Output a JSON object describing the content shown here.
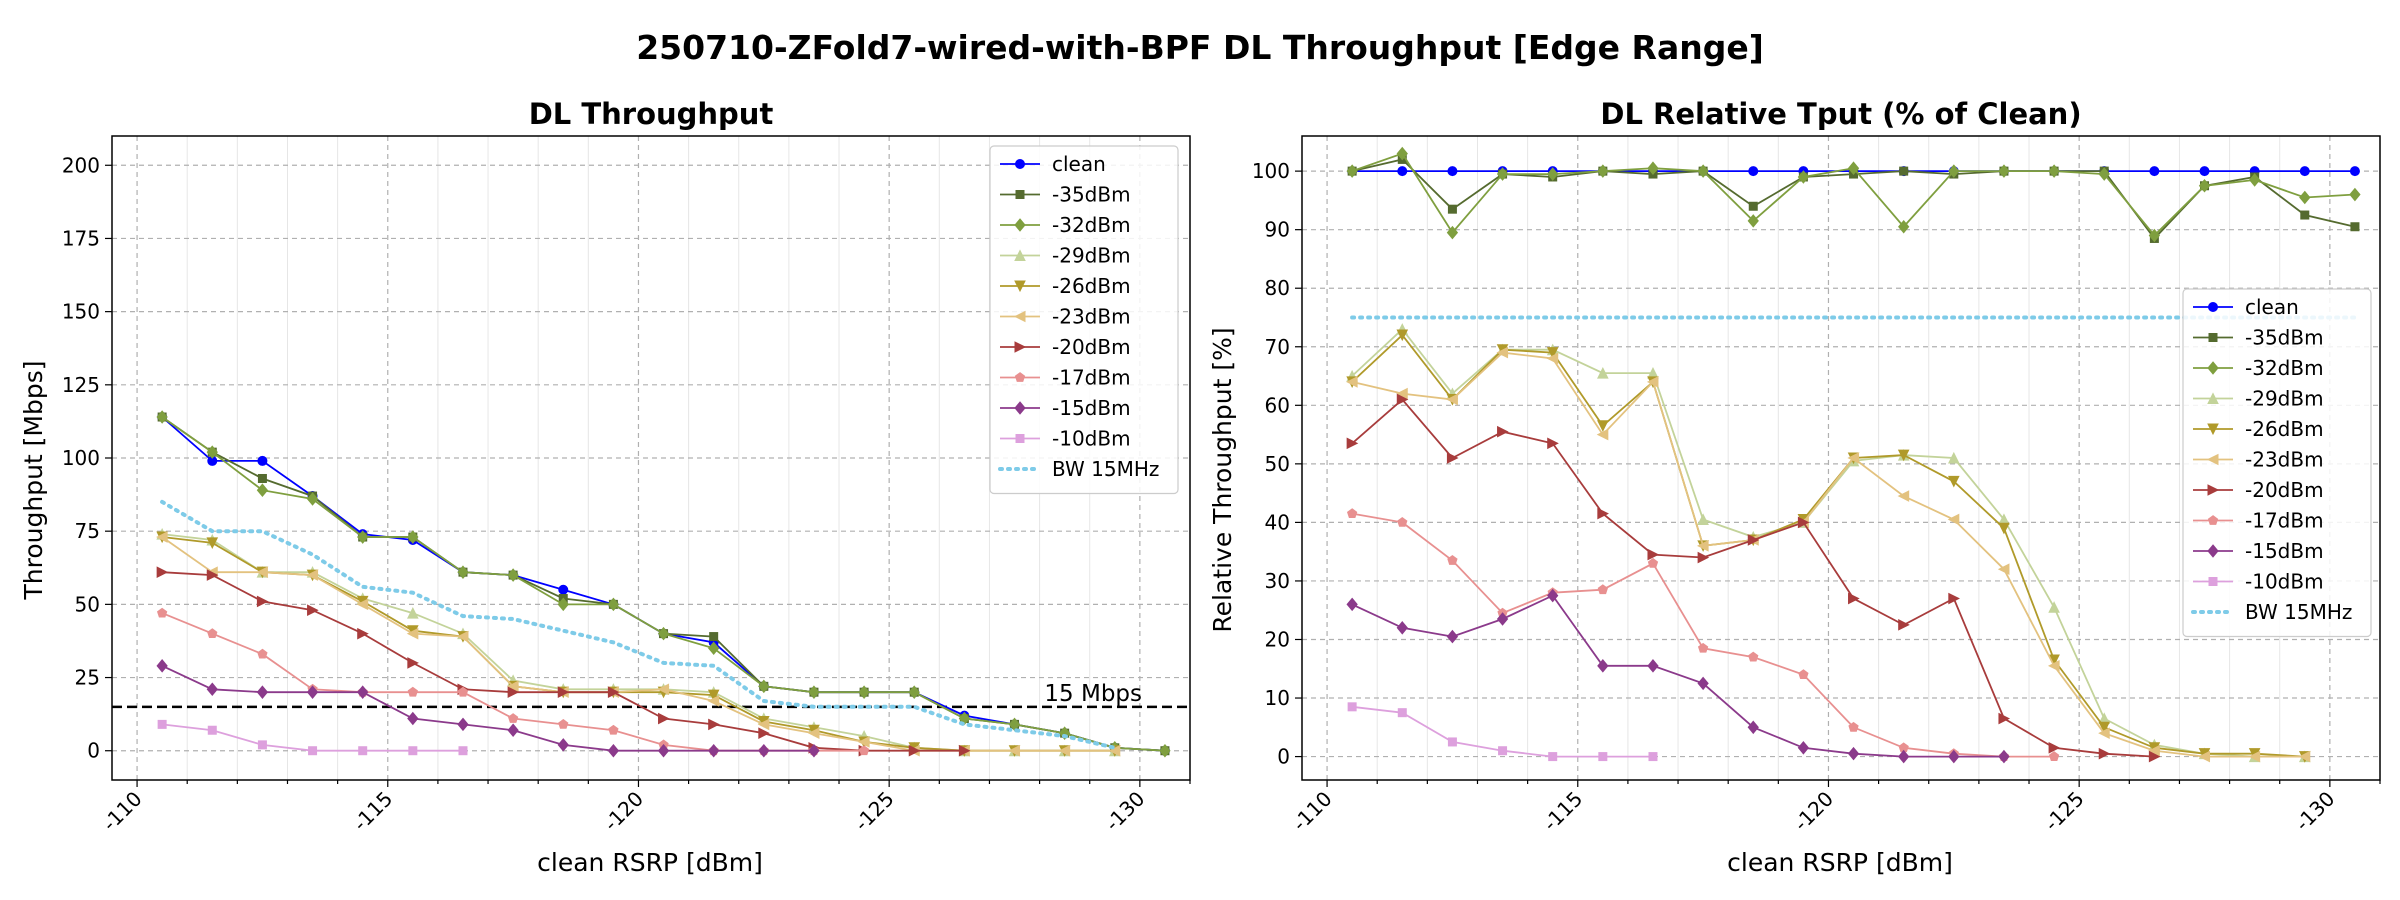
{
  "figure": {
    "suptitle": "250710-ZFold7-wired-with-BPF DL Throughput [Edge Range]"
  },
  "chart_data": [
    {
      "type": "line",
      "title": "DL Throughput",
      "xlabel": "clean RSRP [dBm]",
      "ylabel": "Throughput [Mbps]",
      "x_reversed": true,
      "xlim": [
        -109.5,
        -131
      ],
      "ylim": [
        -10,
        210
      ],
      "xticks": [
        -110,
        -115,
        -120,
        -125,
        -130
      ],
      "yticks": [
        0,
        25,
        50,
        75,
        100,
        125,
        150,
        175,
        200
      ],
      "grid": true,
      "legend_position": "top-right",
      "hline": {
        "y": 15,
        "label": "15 Mbps",
        "color": "#000000",
        "style": "dashed"
      },
      "series": [
        {
          "name": "clean",
          "color": "#0000ff",
          "marker": "circle",
          "x": [
            -110.5,
            -111.5,
            -112.5,
            -113.5,
            -114.5,
            -115.5,
            -116.5,
            -117.5,
            -118.5,
            -119.5,
            -120.5,
            -121.5,
            -122.5,
            -123.5,
            -124.5,
            -125.5,
            -126.5,
            -127.5,
            -128.5,
            -129.5,
            -130.5
          ],
          "y": [
            114,
            99,
            99,
            87,
            74,
            72,
            61,
            60,
            55,
            50,
            40,
            37,
            22,
            20,
            20,
            20,
            12,
            9,
            6,
            1,
            0
          ]
        },
        {
          "name": "-35dBm",
          "color": "#556b2f",
          "marker": "square",
          "x": [
            -110.5,
            -111.5,
            -112.5,
            -113.5,
            -114.5,
            -115.5,
            -116.5,
            -117.5,
            -118.5,
            -119.5,
            -120.5,
            -121.5,
            -122.5,
            -123.5,
            -124.5,
            -125.5,
            -126.5,
            -127.5,
            -128.5,
            -129.5,
            -130.5
          ],
          "y": [
            114,
            102,
            93,
            87,
            73,
            73,
            61,
            60,
            52,
            50,
            40,
            39,
            22,
            20,
            20,
            20,
            11,
            9,
            6,
            1,
            0
          ]
        },
        {
          "name": "-32dBm",
          "color": "#7f9f3f",
          "marker": "diamond",
          "x": [
            -110.5,
            -111.5,
            -112.5,
            -113.5,
            -114.5,
            -115.5,
            -116.5,
            -117.5,
            -118.5,
            -119.5,
            -120.5,
            -121.5,
            -122.5,
            -123.5,
            -124.5,
            -125.5,
            -126.5,
            -127.5,
            -128.5,
            -129.5,
            -130.5
          ],
          "y": [
            114,
            102,
            89,
            86,
            73,
            73,
            61,
            60,
            50,
            50,
            40,
            35,
            22,
            20,
            20,
            20,
            11,
            9,
            6,
            1,
            0
          ]
        },
        {
          "name": "-29dBm",
          "color": "#c3d39a",
          "marker": "triangle-up",
          "x": [
            -110.5,
            -111.5,
            -112.5,
            -113.5,
            -114.5,
            -115.5,
            -116.5,
            -117.5,
            -118.5,
            -119.5,
            -120.5,
            -121.5,
            -122.5,
            -123.5,
            -124.5,
            -125.5,
            -126.5,
            -127.5,
            -128.5,
            -129.5
          ],
          "y": [
            74,
            72,
            61,
            61,
            52,
            47,
            40,
            24,
            21,
            21,
            21,
            20,
            11,
            8,
            5,
            1,
            0,
            0,
            0,
            0
          ]
        },
        {
          "name": "-26dBm",
          "color": "#b09a2a",
          "marker": "triangle-down",
          "x": [
            -110.5,
            -111.5,
            -112.5,
            -113.5,
            -114.5,
            -115.5,
            -116.5,
            -117.5,
            -118.5,
            -119.5,
            -120.5,
            -121.5,
            -122.5,
            -123.5,
            -124.5,
            -125.5,
            -126.5,
            -127.5,
            -128.5,
            -129.5
          ],
          "y": [
            73,
            71,
            61,
            60,
            51,
            41,
            39,
            22,
            20,
            20,
            20,
            19,
            10,
            7,
            3,
            1,
            0,
            0,
            0,
            0
          ]
        },
        {
          "name": "-23dBm",
          "color": "#e3c27f",
          "marker": "triangle-left",
          "x": [
            -110.5,
            -111.5,
            -112.5,
            -113.5,
            -114.5,
            -115.5,
            -116.5,
            -117.5,
            -118.5,
            -119.5,
            -120.5,
            -121.5,
            -122.5,
            -123.5,
            -124.5,
            -125.5,
            -126.5,
            -127.5,
            -128.5,
            -129.5
          ],
          "y": [
            73,
            61,
            61,
            60,
            50,
            40,
            39,
            22,
            20,
            20,
            21,
            17,
            9,
            6,
            3,
            0,
            0,
            0,
            0,
            0
          ]
        },
        {
          "name": "-20dBm",
          "color": "#a83c3c",
          "marker": "triangle-right",
          "x": [
            -110.5,
            -111.5,
            -112.5,
            -113.5,
            -114.5,
            -115.5,
            -116.5,
            -117.5,
            -118.5,
            -119.5,
            -120.5,
            -121.5,
            -122.5,
            -123.5,
            -124.5,
            -125.5,
            -126.5
          ],
          "y": [
            61,
            60,
            51,
            48,
            40,
            30,
            21,
            20,
            20,
            20,
            11,
            9,
            6,
            1,
            0,
            0,
            0
          ]
        },
        {
          "name": "-17dBm",
          "color": "#e89090",
          "marker": "pentagon",
          "x": [
            -110.5,
            -111.5,
            -112.5,
            -113.5,
            -114.5,
            -115.5,
            -116.5,
            -117.5,
            -118.5,
            -119.5,
            -120.5,
            -121.5,
            -122.5,
            -123.5,
            -124.5
          ],
          "y": [
            47,
            40,
            33,
            21,
            20,
            20,
            20,
            11,
            9,
            7,
            2,
            0,
            0,
            0,
            0
          ]
        },
        {
          "name": "-15dBm",
          "color": "#8b3a8b",
          "marker": "diamond",
          "x": [
            -110.5,
            -111.5,
            -112.5,
            -113.5,
            -114.5,
            -115.5,
            -116.5,
            -117.5,
            -118.5,
            -119.5,
            -120.5,
            -121.5,
            -122.5,
            -123.5
          ],
          "y": [
            29,
            21,
            20,
            20,
            20,
            11,
            9,
            7,
            2,
            0,
            0,
            0,
            0,
            0
          ]
        },
        {
          "name": "-10dBm",
          "color": "#dda0dd",
          "marker": "square",
          "x": [
            -110.5,
            -111.5,
            -112.5,
            -113.5,
            -114.5,
            -115.5,
            -116.5
          ],
          "y": [
            9,
            7,
            2,
            0,
            0,
            0,
            0
          ]
        },
        {
          "name": "BW 15MHz",
          "color": "#7ecbe8",
          "style": "dotted",
          "marker": "none",
          "x": [
            -110.5,
            -111.5,
            -112.5,
            -113.5,
            -114.5,
            -115.5,
            -116.5,
            -117.5,
            -118.5,
            -119.5,
            -120.5,
            -121.5,
            -122.5,
            -123.5,
            -124.5,
            -125.5,
            -126.5,
            -127.5,
            -128.5,
            -129.5
          ],
          "y": [
            85,
            75,
            75,
            67,
            56,
            54,
            46,
            45,
            41,
            37,
            30,
            29,
            17,
            15,
            15,
            15,
            9,
            7,
            5,
            1
          ]
        }
      ]
    },
    {
      "type": "line",
      "title": "DL Relative Tput (% of Clean)",
      "xlabel": "clean RSRP [dBm]",
      "ylabel": "Relative Throughput [%]",
      "x_reversed": true,
      "xlim": [
        -109.5,
        -131
      ],
      "ylim": [
        -4,
        106
      ],
      "xticks": [
        -110,
        -115,
        -120,
        -125,
        -130
      ],
      "yticks": [
        0,
        10,
        20,
        30,
        40,
        50,
        60,
        70,
        80,
        90,
        100
      ],
      "grid": true,
      "legend_position": "center-right",
      "series": [
        {
          "name": "clean",
          "color": "#0000ff",
          "marker": "circle",
          "x": [
            -110.5,
            -111.5,
            -112.5,
            -113.5,
            -114.5,
            -115.5,
            -116.5,
            -117.5,
            -118.5,
            -119.5,
            -120.5,
            -121.5,
            -122.5,
            -123.5,
            -124.5,
            -125.5,
            -126.5,
            -127.5,
            -128.5,
            -129.5,
            -130.5
          ],
          "y": [
            100,
            100,
            100,
            100,
            100,
            100,
            100,
            100,
            100,
            100,
            100,
            100,
            100,
            100,
            100,
            100,
            100,
            100,
            100,
            100,
            100
          ]
        },
        {
          "name": "-35dBm",
          "color": "#556b2f",
          "marker": "square",
          "x": [
            -110.5,
            -111.5,
            -112.5,
            -113.5,
            -114.5,
            -115.5,
            -116.5,
            -117.5,
            -118.5,
            -119.5,
            -120.5,
            -121.5,
            -122.5,
            -123.5,
            -124.5,
            -125.5,
            -126.5,
            -127.5,
            -128.5,
            -129.5,
            -130.5
          ],
          "y": [
            100,
            102,
            93.5,
            99.5,
            99,
            100,
            99.5,
            100,
            94,
            99,
            99.5,
            100,
            99.5,
            100,
            100,
            100,
            88.5,
            97.5,
            99,
            92.5,
            90.5
          ]
        },
        {
          "name": "-32dBm",
          "color": "#7f9f3f",
          "marker": "diamond",
          "x": [
            -110.5,
            -111.5,
            -112.5,
            -113.5,
            -114.5,
            -115.5,
            -116.5,
            -117.5,
            -118.5,
            -119.5,
            -120.5,
            -121.5,
            -122.5,
            -123.5,
            -124.5,
            -125.5,
            -126.5,
            -127.5,
            -128.5,
            -129.5,
            -130.5
          ],
          "y": [
            100,
            103,
            89.5,
            99.5,
            99.5,
            100,
            100.5,
            100,
            91.5,
            99,
            100.5,
            90.5,
            100,
            100,
            100,
            99.5,
            89,
            97.5,
            98.5,
            95.5,
            96
          ]
        },
        {
          "name": "-29dBm",
          "color": "#c3d39a",
          "marker": "triangle-up",
          "x": [
            -110.5,
            -111.5,
            -112.5,
            -113.5,
            -114.5,
            -115.5,
            -116.5,
            -117.5,
            -118.5,
            -119.5,
            -120.5,
            -121.5,
            -122.5,
            -123.5,
            -124.5,
            -125.5,
            -126.5,
            -127.5,
            -128.5,
            -129.5
          ],
          "y": [
            65,
            73,
            62,
            69.5,
            69.5,
            65.5,
            65.5,
            40.5,
            37.5,
            40,
            50.5,
            51.5,
            51,
            40.5,
            25.5,
            6.5,
            2,
            0.5,
            0,
            0
          ]
        },
        {
          "name": "-26dBm",
          "color": "#b09a2a",
          "marker": "triangle-down",
          "x": [
            -110.5,
            -111.5,
            -112.5,
            -113.5,
            -114.5,
            -115.5,
            -116.5,
            -117.5,
            -118.5,
            -119.5,
            -120.5,
            -121.5,
            -122.5,
            -123.5,
            -124.5,
            -125.5,
            -126.5,
            -127.5,
            -128.5,
            -129.5
          ],
          "y": [
            64,
            72,
            61,
            69.5,
            69,
            56.5,
            64,
            36,
            37,
            40.5,
            51,
            51.5,
            47,
            39,
            16.5,
            5,
            1.5,
            0.5,
            0.5,
            0
          ]
        },
        {
          "name": "-23dBm",
          "color": "#e3c27f",
          "marker": "triangle-left",
          "x": [
            -110.5,
            -111.5,
            -112.5,
            -113.5,
            -114.5,
            -115.5,
            -116.5,
            -117.5,
            -118.5,
            -119.5,
            -120.5,
            -121.5,
            -122.5,
            -123.5,
            -124.5,
            -125.5,
            -126.5,
            -127.5,
            -128.5,
            -129.5
          ],
          "y": [
            64,
            62,
            61,
            69,
            68,
            55,
            64,
            36,
            37,
            40,
            51,
            44.5,
            40.5,
            32,
            15.5,
            4,
            1,
            0,
            0,
            0
          ]
        },
        {
          "name": "-20dBm",
          "color": "#a83c3c",
          "marker": "triangle-right",
          "x": [
            -110.5,
            -111.5,
            -112.5,
            -113.5,
            -114.5,
            -115.5,
            -116.5,
            -117.5,
            -118.5,
            -119.5,
            -120.5,
            -121.5,
            -122.5,
            -123.5,
            -124.5,
            -125.5,
            -126.5
          ],
          "y": [
            53.5,
            61,
            51,
            55.5,
            53.5,
            41.5,
            34.5,
            34,
            37,
            40,
            27,
            22.5,
            27,
            6.5,
            1.5,
            0.5,
            0
          ]
        },
        {
          "name": "-17dBm",
          "color": "#e89090",
          "marker": "pentagon",
          "x": [
            -110.5,
            -111.5,
            -112.5,
            -113.5,
            -114.5,
            -115.5,
            -116.5,
            -117.5,
            -118.5,
            -119.5,
            -120.5,
            -121.5,
            -122.5,
            -123.5,
            -124.5
          ],
          "y": [
            41.5,
            40,
            33.5,
            24.5,
            28,
            28.5,
            33,
            18.5,
            17,
            14,
            5,
            1.5,
            0.5,
            0,
            0
          ]
        },
        {
          "name": "-15dBm",
          "color": "#8b3a8b",
          "marker": "diamond",
          "x": [
            -110.5,
            -111.5,
            -112.5,
            -113.5,
            -114.5,
            -115.5,
            -116.5,
            -117.5,
            -118.5,
            -119.5,
            -120.5,
            -121.5,
            -122.5,
            -123.5
          ],
          "y": [
            26,
            22,
            20.5,
            23.5,
            27.5,
            15.5,
            15.5,
            12.5,
            5,
            1.5,
            0.5,
            0,
            0,
            0
          ]
        },
        {
          "name": "-10dBm",
          "color": "#dda0dd",
          "marker": "square",
          "x": [
            -110.5,
            -111.5,
            -112.5,
            -113.5,
            -114.5,
            -115.5,
            -116.5
          ],
          "y": [
            8.5,
            7.5,
            2.5,
            1,
            0,
            0,
            0
          ]
        },
        {
          "name": "BW 15MHz",
          "color": "#7ecbe8",
          "style": "dotted",
          "marker": "none",
          "x": [
            -110.5,
            -130.5
          ],
          "y": [
            75,
            75
          ]
        }
      ]
    }
  ]
}
